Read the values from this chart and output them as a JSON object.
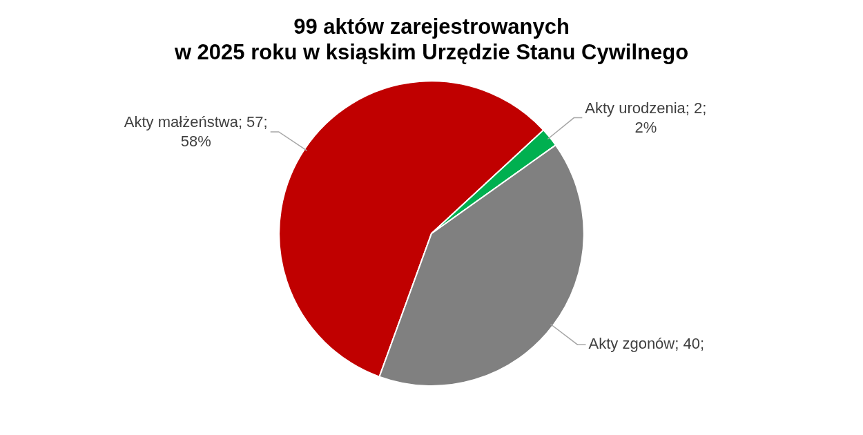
{
  "chart_data": {
    "type": "pie",
    "title": [
      "99 aktów zarejestrowanych",
      "w 2025 roku w ksiąskim Urzędzie Stanu Cywilnego"
    ],
    "categories": [
      "Akty małżeństwa",
      "Akty urodzenia",
      "Akty zgonów"
    ],
    "value_labels": [
      "57; 58%",
      "2; 2%",
      "40;"
    ],
    "values": [
      57,
      2,
      40
    ],
    "colors": [
      "#c00000",
      "#00b050",
      "#808080"
    ],
    "legend": false
  }
}
